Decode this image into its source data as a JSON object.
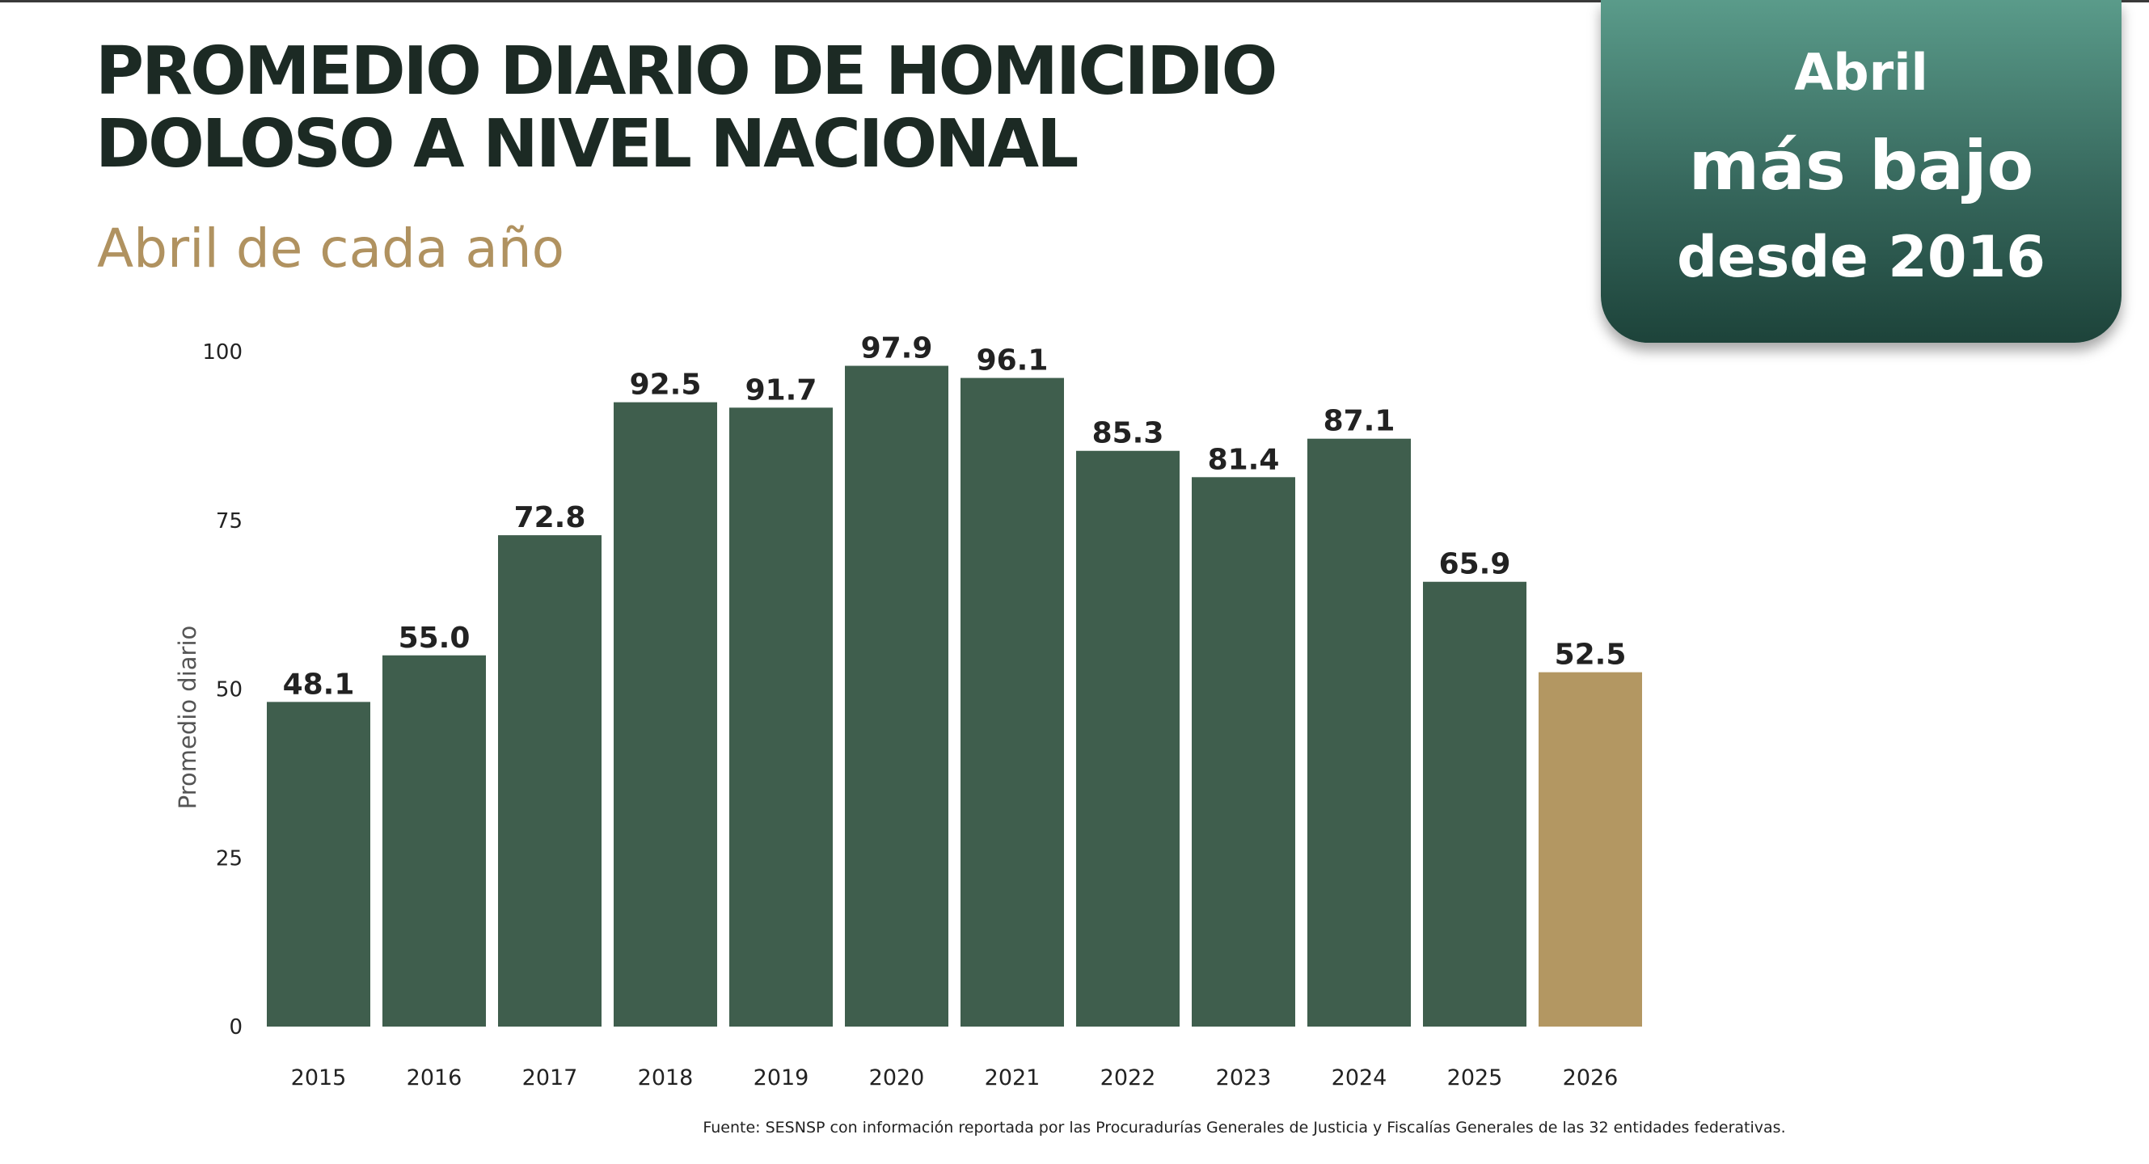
{
  "header": {
    "title_line1": "PROMEDIO DIARIO DE HOMICIDIO",
    "title_line2": "DOLOSO A NIVEL NACIONAL",
    "subtitle": "Abril de cada año"
  },
  "callout": {
    "line1": "Abril",
    "line2": "más bajo",
    "line3": "desde 2016"
  },
  "footnote": "Fuente: SESNSP con información reportada por las Procuradurías Generales de Justicia y Fiscalías Generales de las 32 entidades federativas.",
  "colors": {
    "bar": "#3f5e4d",
    "highlight_bar": "#b39762",
    "title": "#1c2a24",
    "subtitle": "#b09260",
    "axis_text": "#222222",
    "ylabel": "#555555"
  },
  "chart_data": {
    "type": "bar",
    "categories": [
      "2015",
      "2016",
      "2017",
      "2018",
      "2019",
      "2020",
      "2021",
      "2022",
      "2023",
      "2024",
      "2025",
      "2026"
    ],
    "values": [
      48.1,
      55.0,
      72.8,
      92.5,
      91.7,
      97.9,
      96.1,
      85.3,
      81.4,
      87.1,
      65.9,
      52.5
    ],
    "value_labels": [
      "48.1",
      "55.0",
      "72.8",
      "92.5",
      "91.7",
      "97.9",
      "96.1",
      "85.3",
      "81.4",
      "87.1",
      "65.9",
      "52.5"
    ],
    "highlight_category": "2026",
    "title": "",
    "xlabel": "",
    "ylabel": "Promedio diario",
    "ylim": [
      0,
      100
    ],
    "yticks": [
      0,
      25,
      50,
      75,
      100
    ],
    "grid": false,
    "legend": "none"
  }
}
